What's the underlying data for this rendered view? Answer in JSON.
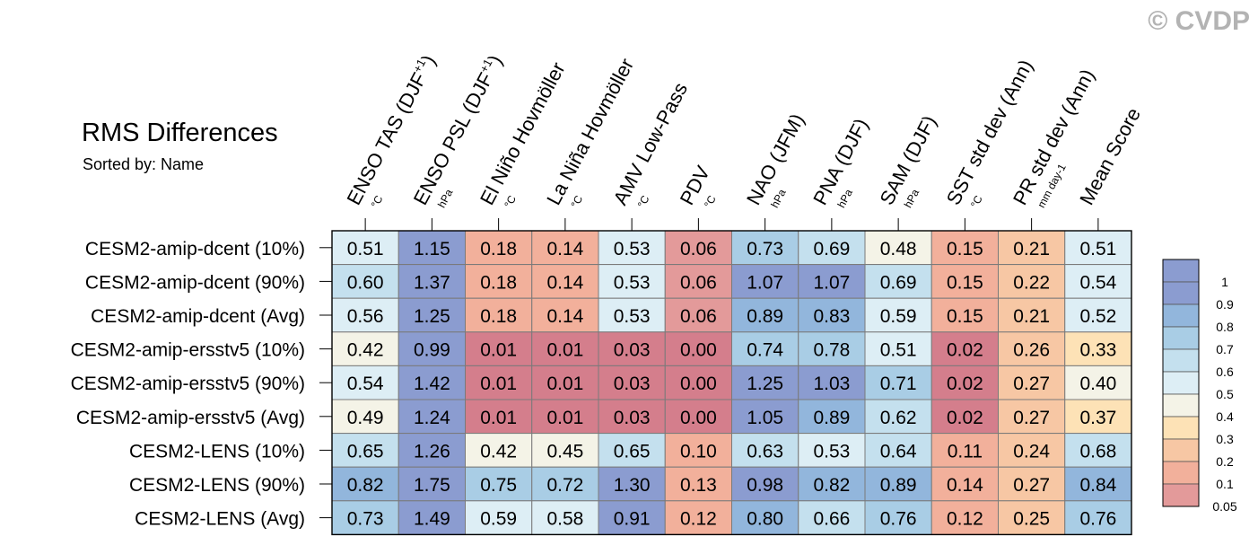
{
  "watermark": "© CVDP",
  "title": "RMS Differences",
  "subtitle": "Sorted by: Name",
  "chart_data": {
    "type": "heatmap",
    "columns": [
      {
        "main": "ENSO TAS (DJF",
        "sup": "+1",
        "close": ")",
        "unit": "°C"
      },
      {
        "main": "ENSO PSL (DJF",
        "sup": "+1",
        "close": ")",
        "unit": "hPa"
      },
      {
        "main": "El Niño Hovmöller",
        "sup": "",
        "close": "",
        "unit": "°C"
      },
      {
        "main": "La Niña Hovmöller",
        "sup": "",
        "close": "",
        "unit": "°C"
      },
      {
        "main": "AMV Low-Pass",
        "sup": "",
        "close": "",
        "unit": "°C"
      },
      {
        "main": "PDV",
        "sup": "",
        "close": "",
        "unit": "°C"
      },
      {
        "main": "NAO (JFM)",
        "sup": "",
        "close": "",
        "unit": "hPa"
      },
      {
        "main": "PNA (DJF)",
        "sup": "",
        "close": "",
        "unit": "hPa"
      },
      {
        "main": "SAM (DJF)",
        "sup": "",
        "close": "",
        "unit": "hPa"
      },
      {
        "main": "SST std dev (Ann)",
        "sup": "",
        "close": "",
        "unit": "°C"
      },
      {
        "main": "PR std dev (Ann)",
        "sup": "",
        "close": "",
        "unit": "mm day-1"
      },
      {
        "main": "Mean Score",
        "sup": "",
        "close": "",
        "unit": ""
      }
    ],
    "rows": [
      "CESM2-amip-dcent (10%)",
      "CESM2-amip-dcent (90%)",
      "CESM2-amip-dcent (Avg)",
      "CESM2-amip-ersstv5 (10%)",
      "CESM2-amip-ersstv5 (90%)",
      "CESM2-amip-ersstv5 (Avg)",
      "CESM2-LENS (10%)",
      "CESM2-LENS (90%)",
      "CESM2-LENS (Avg)"
    ],
    "values": [
      [
        "0.51",
        "1.15",
        "0.18",
        "0.14",
        "0.53",
        "0.06",
        "0.73",
        "0.69",
        "0.48",
        "0.15",
        "0.21",
        "0.51"
      ],
      [
        "0.60",
        "1.37",
        "0.18",
        "0.14",
        "0.53",
        "0.06",
        "1.07",
        "1.07",
        "0.69",
        "0.15",
        "0.22",
        "0.54"
      ],
      [
        "0.56",
        "1.25",
        "0.18",
        "0.14",
        "0.53",
        "0.06",
        "0.89",
        "0.83",
        "0.59",
        "0.15",
        "0.21",
        "0.52"
      ],
      [
        "0.42",
        "0.99",
        "0.01",
        "0.01",
        "0.03",
        "0.00",
        "0.74",
        "0.78",
        "0.51",
        "0.02",
        "0.26",
        "0.33"
      ],
      [
        "0.54",
        "1.42",
        "0.01",
        "0.01",
        "0.03",
        "0.00",
        "1.25",
        "1.03",
        "0.71",
        "0.02",
        "0.27",
        "0.40"
      ],
      [
        "0.49",
        "1.24",
        "0.01",
        "0.01",
        "0.03",
        "0.00",
        "1.05",
        "0.89",
        "0.62",
        "0.02",
        "0.27",
        "0.37"
      ],
      [
        "0.65",
        "1.26",
        "0.42",
        "0.45",
        "0.65",
        "0.10",
        "0.63",
        "0.53",
        "0.64",
        "0.11",
        "0.24",
        "0.68"
      ],
      [
        "0.82",
        "1.75",
        "0.75",
        "0.72",
        "1.30",
        "0.13",
        "0.98",
        "0.82",
        "0.89",
        "0.14",
        "0.27",
        "0.84"
      ],
      [
        "0.73",
        "1.49",
        "0.59",
        "0.58",
        "0.91",
        "0.12",
        "0.80",
        "0.66",
        "0.76",
        "0.12",
        "0.25",
        "0.76"
      ]
    ],
    "colorbar": {
      "levels": [
        "1",
        "0.9",
        "0.8",
        "0.7",
        "0.6",
        "0.5",
        "0.4",
        "0.3",
        "0.2",
        "0.1",
        "0.05"
      ],
      "thresholds": [
        0.05,
        0.1,
        0.2,
        0.3,
        0.4,
        0.5,
        0.6,
        0.7,
        0.8,
        0.9,
        1.0
      ],
      "colors": [
        "#d47e8c",
        "#e39a9a",
        "#f2b09b",
        "#f7c7a4",
        "#fde2b6",
        "#f4f3e7",
        "#ddeef5",
        "#c4e0ee",
        "#a9cde5",
        "#92b6dc",
        "#8b9cd0",
        "#8b9cd0"
      ]
    }
  }
}
